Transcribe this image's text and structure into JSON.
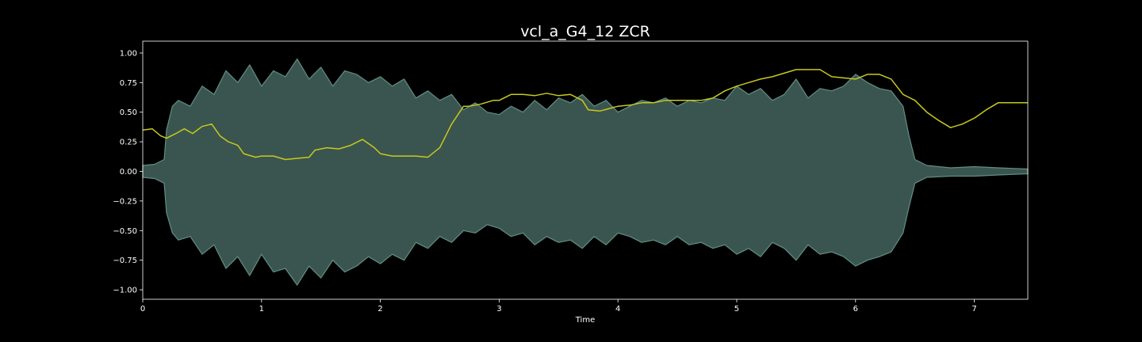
{
  "chart_data": {
    "type": "line",
    "title": "vcl_a_G4_12 ZCR",
    "xlabel": "Time",
    "ylabel": "",
    "xlim": [
      0,
      7.45
    ],
    "ylim": [
      -1.08,
      1.1
    ],
    "x_ticks": [
      0,
      1,
      2,
      3,
      4,
      5,
      6,
      7
    ],
    "x_tick_labels": [
      "0",
      "1",
      "2",
      "3",
      "4",
      "5",
      "6",
      "7"
    ],
    "y_ticks": [
      1.0,
      0.75,
      0.5,
      0.25,
      0.0,
      -0.25,
      -0.5,
      -0.75,
      -1.0
    ],
    "y_tick_labels": [
      "1.00",
      "0.75",
      "0.50",
      "0.25",
      "0.00",
      "−0.25",
      "−0.50",
      "−0.75",
      "−1.00"
    ],
    "grid": false,
    "colors": {
      "background": "#000000",
      "axes_edge": "#ffffff",
      "waveform_fill": "#3a554f",
      "waveform_edge": "#5f8f84",
      "zcr_line": "#c8c81e"
    },
    "series": [
      {
        "type": "waveform-envelope",
        "x": [
          0,
          0.1,
          0.18,
          0.2,
          0.25,
          0.3,
          0.4,
          0.5,
          0.6,
          0.7,
          0.8,
          0.9,
          1.0,
          1.1,
          1.2,
          1.3,
          1.4,
          1.5,
          1.6,
          1.7,
          1.8,
          1.9,
          2.0,
          2.1,
          2.2,
          2.3,
          2.4,
          2.5,
          2.6,
          2.7,
          2.8,
          2.9,
          3.0,
          3.1,
          3.2,
          3.3,
          3.4,
          3.5,
          3.6,
          3.7,
          3.8,
          3.9,
          4.0,
          4.1,
          4.2,
          4.3,
          4.4,
          4.5,
          4.6,
          4.7,
          4.8,
          4.9,
          5.0,
          5.1,
          5.2,
          5.3,
          5.4,
          5.5,
          5.6,
          5.7,
          5.8,
          5.9,
          6.0,
          6.1,
          6.2,
          6.3,
          6.4,
          6.45,
          6.5,
          6.6,
          6.8,
          7.0,
          7.2,
          7.45
        ],
        "upper": [
          0.05,
          0.06,
          0.1,
          0.35,
          0.55,
          0.6,
          0.55,
          0.72,
          0.65,
          0.85,
          0.75,
          0.9,
          0.72,
          0.85,
          0.8,
          0.95,
          0.78,
          0.88,
          0.72,
          0.85,
          0.82,
          0.75,
          0.8,
          0.72,
          0.78,
          0.62,
          0.68,
          0.6,
          0.65,
          0.52,
          0.58,
          0.5,
          0.48,
          0.55,
          0.5,
          0.6,
          0.52,
          0.62,
          0.58,
          0.65,
          0.55,
          0.6,
          0.5,
          0.55,
          0.6,
          0.58,
          0.62,
          0.55,
          0.6,
          0.58,
          0.62,
          0.6,
          0.72,
          0.65,
          0.7,
          0.6,
          0.65,
          0.78,
          0.62,
          0.7,
          0.68,
          0.72,
          0.82,
          0.75,
          0.7,
          0.68,
          0.55,
          0.3,
          0.1,
          0.05,
          0.03,
          0.04,
          0.03,
          0.02
        ],
        "lower": [
          -0.05,
          -0.06,
          -0.1,
          -0.35,
          -0.52,
          -0.58,
          -0.55,
          -0.7,
          -0.62,
          -0.82,
          -0.72,
          -0.88,
          -0.7,
          -0.85,
          -0.82,
          -0.96,
          -0.8,
          -0.9,
          -0.75,
          -0.85,
          -0.8,
          -0.72,
          -0.78,
          -0.7,
          -0.75,
          -0.6,
          -0.65,
          -0.55,
          -0.6,
          -0.5,
          -0.52,
          -0.45,
          -0.48,
          -0.55,
          -0.52,
          -0.62,
          -0.55,
          -0.6,
          -0.58,
          -0.65,
          -0.55,
          -0.62,
          -0.52,
          -0.55,
          -0.6,
          -0.58,
          -0.62,
          -0.55,
          -0.62,
          -0.6,
          -0.65,
          -0.62,
          -0.7,
          -0.65,
          -0.72,
          -0.6,
          -0.65,
          -0.75,
          -0.62,
          -0.7,
          -0.68,
          -0.72,
          -0.8,
          -0.75,
          -0.72,
          -0.68,
          -0.52,
          -0.3,
          -0.1,
          -0.05,
          -0.04,
          -0.04,
          -0.03,
          -0.02
        ]
      },
      {
        "type": "line",
        "x": [
          0,
          0.08,
          0.15,
          0.2,
          0.28,
          0.35,
          0.42,
          0.5,
          0.58,
          0.65,
          0.72,
          0.8,
          0.85,
          0.95,
          1.0,
          1.1,
          1.2,
          1.3,
          1.4,
          1.45,
          1.55,
          1.65,
          1.75,
          1.85,
          1.95,
          2.0,
          2.1,
          2.2,
          2.3,
          2.4,
          2.5,
          2.6,
          2.7,
          2.75,
          2.85,
          2.95,
          3.0,
          3.1,
          3.2,
          3.3,
          3.4,
          3.5,
          3.6,
          3.7,
          3.75,
          3.85,
          4.0,
          4.1,
          4.2,
          4.3,
          4.4,
          4.5,
          4.6,
          4.7,
          4.8,
          4.9,
          5.0,
          5.1,
          5.2,
          5.3,
          5.4,
          5.5,
          5.6,
          5.7,
          5.8,
          5.9,
          6.0,
          6.1,
          6.2,
          6.3,
          6.4,
          6.5,
          6.6,
          6.7,
          6.8,
          6.9,
          7.0,
          7.1,
          7.2,
          7.3,
          7.45
        ],
        "y": [
          0.35,
          0.36,
          0.3,
          0.28,
          0.32,
          0.36,
          0.32,
          0.38,
          0.4,
          0.3,
          0.25,
          0.22,
          0.15,
          0.12,
          0.13,
          0.13,
          0.1,
          0.11,
          0.12,
          0.18,
          0.2,
          0.19,
          0.22,
          0.27,
          0.2,
          0.15,
          0.13,
          0.13,
          0.13,
          0.12,
          0.2,
          0.4,
          0.55,
          0.55,
          0.57,
          0.6,
          0.6,
          0.65,
          0.65,
          0.64,
          0.66,
          0.64,
          0.65,
          0.6,
          0.52,
          0.51,
          0.55,
          0.56,
          0.58,
          0.58,
          0.6,
          0.6,
          0.6,
          0.6,
          0.62,
          0.68,
          0.72,
          0.75,
          0.78,
          0.8,
          0.83,
          0.86,
          0.86,
          0.86,
          0.8,
          0.79,
          0.78,
          0.82,
          0.82,
          0.78,
          0.65,
          0.6,
          0.5,
          0.43,
          0.37,
          0.4,
          0.45,
          0.52,
          0.58,
          0.58,
          0.58
        ]
      }
    ]
  }
}
